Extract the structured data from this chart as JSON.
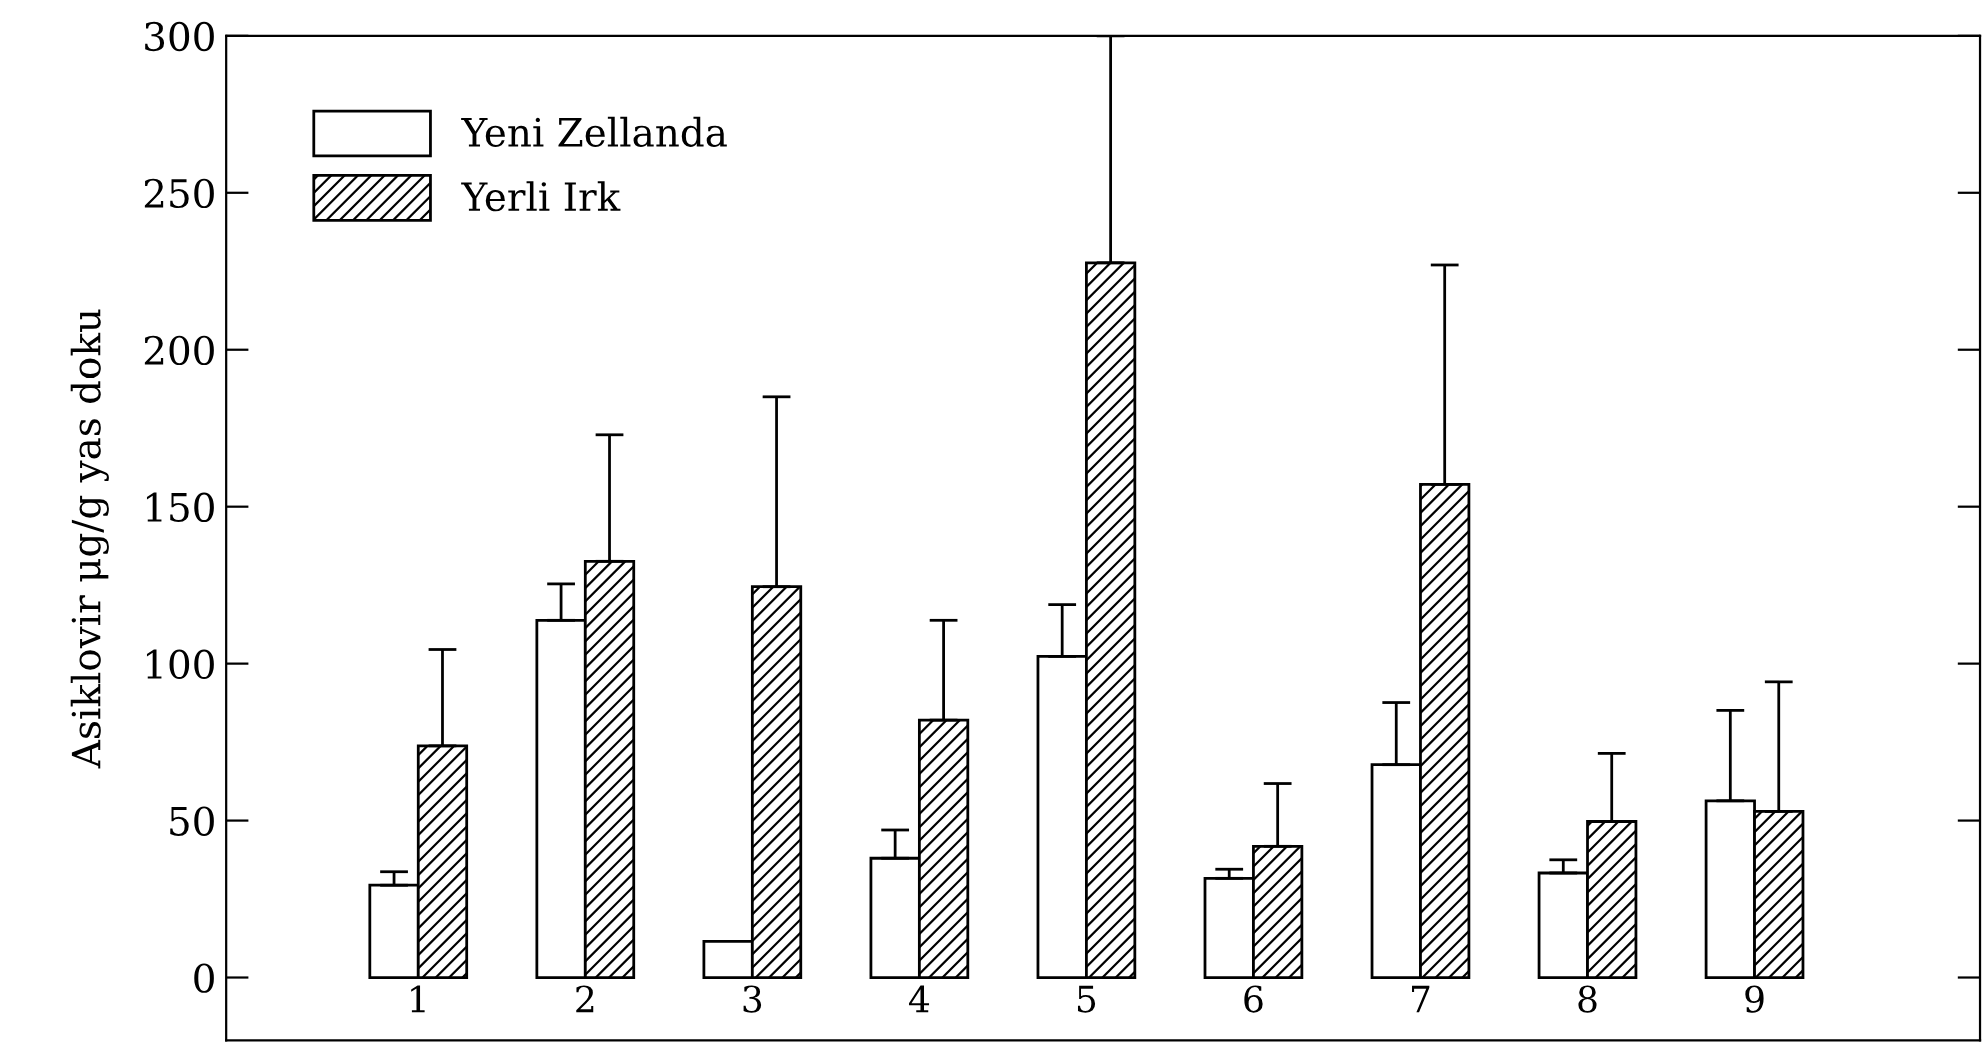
{
  "chart_data": {
    "type": "bar",
    "ylabel": "Asiklovir μg/g yas doku",
    "categories": [
      "1",
      "2",
      "3",
      "4",
      "5",
      "6",
      "7",
      "8",
      "9"
    ],
    "series": [
      {
        "name": "Yeni Zellanda",
        "color": "#ffffff",
        "values": [
          29.4,
          113.8,
          11.5,
          38,
          102.3,
          31.6,
          67.8,
          33.3,
          56.3
        ],
        "errors": [
          [
            29.4,
            33.7
          ],
          [
            113.8,
            125.4
          ],
          null,
          [
            38,
            47
          ],
          [
            102.3,
            118.8
          ],
          [
            31.6,
            34.5
          ],
          [
            67.8,
            87.6
          ],
          [
            33.3,
            37.5
          ],
          [
            56.3,
            85.1
          ]
        ]
      },
      {
        "name": "Yerli Irk",
        "color": "#000000",
        "values": [
          73.8,
          132.6,
          124.5,
          82,
          227.7,
          41.8,
          157.1,
          49.7,
          52.9
        ],
        "errors": [
          [
            73.8,
            104.5
          ],
          [
            132.6,
            172.9
          ],
          [
            124.5,
            185
          ],
          [
            82,
            113.8
          ],
          [
            227.7,
            300
          ],
          [
            41.8,
            61.8
          ],
          [
            157.1,
            227
          ],
          [
            49.7,
            71.4
          ],
          [
            52.9,
            94.2
          ]
        ]
      }
    ],
    "ylim": [
      -20,
      300
    ],
    "yticks": [
      0,
      50,
      100,
      150,
      200,
      250,
      300
    ],
    "grid": false,
    "legend": "top left"
  }
}
